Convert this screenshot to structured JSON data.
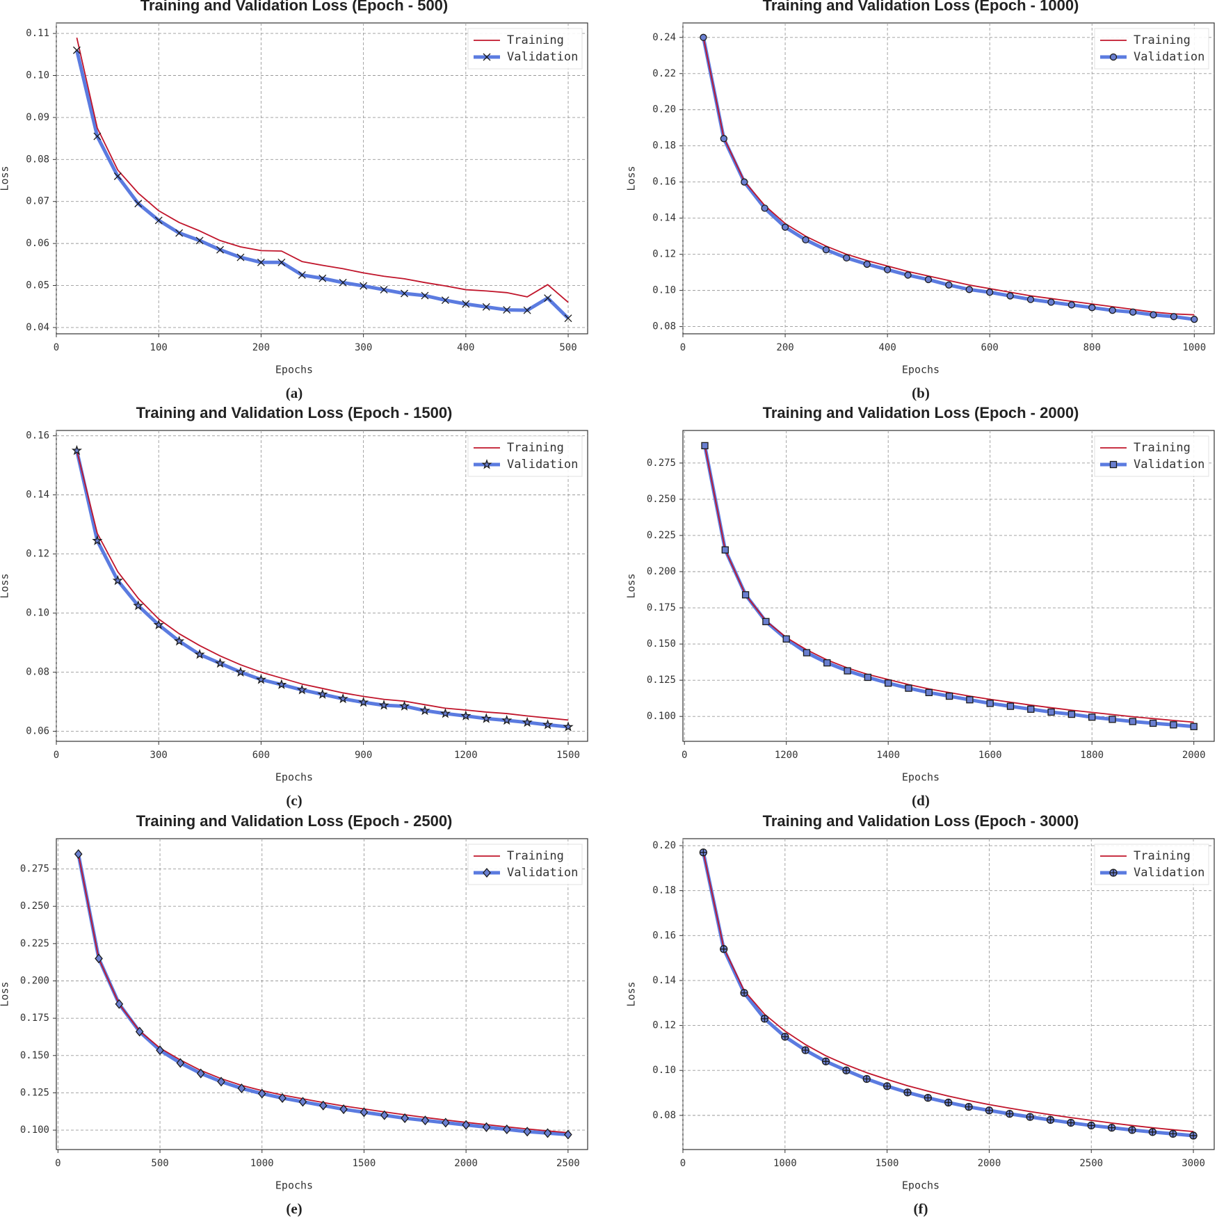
{
  "chart_data": [
    {
      "type": "line",
      "title": "Training and Validation Loss (Epoch - 500)",
      "xlabel": "Epochs",
      "ylabel": "Loss",
      "caption": "(a)",
      "x": [
        20,
        40,
        60,
        80,
        100,
        120,
        140,
        160,
        180,
        200,
        220,
        240,
        260,
        280,
        300,
        320,
        340,
        360,
        380,
        400,
        420,
        440,
        460,
        480,
        500
      ],
      "series": [
        {
          "name": "Training",
          "color": "#c0142a",
          "values": [
            0.109,
            0.0875,
            0.0775,
            0.072,
            0.0678,
            0.065,
            0.063,
            0.0607,
            0.0592,
            0.0583,
            0.0582,
            0.0557,
            0.0548,
            0.054,
            0.053,
            0.0522,
            0.0516,
            0.0507,
            0.0499,
            0.049,
            0.0487,
            0.0483,
            0.0473,
            0.0502,
            0.046
          ]
        },
        {
          "name": "Validation",
          "color": "#5b7be0",
          "marker": "x",
          "values": [
            0.106,
            0.0855,
            0.076,
            0.0695,
            0.0655,
            0.0625,
            0.0607,
            0.0585,
            0.0567,
            0.0555,
            0.0555,
            0.0525,
            0.0517,
            0.0507,
            0.0499,
            0.049,
            0.0481,
            0.0476,
            0.0465,
            0.0456,
            0.0449,
            0.0442,
            0.0441,
            0.047,
            0.0422
          ]
        }
      ],
      "xlim": [
        0,
        519
      ],
      "ylim": [
        0.0385,
        0.1125
      ],
      "xticks": [
        0,
        100,
        200,
        300,
        400,
        500
      ],
      "yticks": [
        0.04,
        0.05,
        0.06,
        0.07,
        0.08,
        0.09,
        {
          "value": 0.1,
          "label": "0.10"
        },
        0.11
      ],
      "grid": true,
      "legend": "upper right"
    },
    {
      "type": "line",
      "title": "Training and Validation Loss (Epoch - 1000)",
      "xlabel": "Epochs",
      "ylabel": "Loss",
      "caption": "(b)",
      "x": [
        40,
        80,
        120,
        160,
        200,
        240,
        280,
        320,
        360,
        400,
        440,
        480,
        520,
        560,
        600,
        640,
        680,
        720,
        760,
        800,
        840,
        880,
        920,
        960,
        1000
      ],
      "series": [
        {
          "name": "Training",
          "color": "#c0142a",
          "values": [
            0.24,
            0.1845,
            0.1605,
            0.147,
            0.137,
            0.13,
            0.1245,
            0.12,
            0.1165,
            0.1135,
            0.1105,
            0.108,
            0.1055,
            0.103,
            0.101,
            0.099,
            0.097,
            0.0955,
            0.094,
            0.0925,
            0.091,
            0.0895,
            0.088,
            0.087,
            0.0865
          ]
        },
        {
          "name": "Validation",
          "color": "#5b7be0",
          "marker": "o",
          "values": [
            0.24,
            0.184,
            0.16,
            0.1455,
            0.135,
            0.128,
            0.1225,
            0.118,
            0.1145,
            0.1115,
            0.1085,
            0.106,
            0.103,
            0.1005,
            0.099,
            0.097,
            0.095,
            0.0935,
            0.092,
            0.0905,
            0.089,
            0.088,
            0.0865,
            0.0855,
            0.084
          ]
        }
      ],
      "xlim": [
        0,
        1039
      ],
      "ylim": [
        0.076,
        0.248
      ],
      "xticks": [
        0,
        200,
        400,
        600,
        800,
        1000
      ],
      "yticks": [
        0.08,
        {
          "value": 0.1,
          "label": "0.10"
        },
        0.12,
        0.14,
        0.16,
        0.18,
        {
          "value": 0.2,
          "label": "0.20"
        },
        0.22,
        0.24
      ],
      "grid": true,
      "legend": "upper right"
    },
    {
      "type": "line",
      "title": "Training and Validation Loss (Epoch - 1500)",
      "xlabel": "Epochs",
      "ylabel": "Loss",
      "caption": "(c)",
      "x": [
        60,
        120,
        180,
        240,
        300,
        360,
        420,
        480,
        540,
        600,
        660,
        720,
        780,
        840,
        900,
        960,
        1020,
        1080,
        1140,
        1200,
        1260,
        1320,
        1380,
        1440,
        1500
      ],
      "series": [
        {
          "name": "Training",
          "color": "#c0142a",
          "values": [
            0.155,
            0.127,
            0.114,
            0.105,
            0.098,
            0.093,
            0.089,
            0.0855,
            0.0825,
            0.08,
            0.078,
            0.076,
            0.0745,
            0.073,
            0.0718,
            0.0708,
            0.0702,
            0.069,
            0.0678,
            0.0672,
            0.0665,
            0.066,
            0.0652,
            0.0645,
            0.0638
          ]
        },
        {
          "name": "Validation",
          "color": "#5b7be0",
          "marker": "*",
          "values": [
            0.155,
            0.1245,
            0.111,
            0.1025,
            0.096,
            0.0905,
            0.086,
            0.083,
            0.08,
            0.0775,
            0.0758,
            0.074,
            0.0725,
            0.071,
            0.0698,
            0.0688,
            0.0685,
            0.067,
            0.066,
            0.0652,
            0.0643,
            0.0637,
            0.063,
            0.0622,
            0.0615
          ]
        }
      ],
      "xlim": [
        0,
        1557
      ],
      "ylim": [
        0.0566,
        0.1618
      ],
      "xticks": [
        0,
        300,
        600,
        900,
        1200,
        1500
      ],
      "yticks": [
        0.06,
        0.08,
        {
          "value": 0.1,
          "label": "0.10"
        },
        0.12,
        0.14,
        0.16
      ],
      "grid": true,
      "legend": "upper right"
    },
    {
      "type": "line",
      "title": "Training and Validation Loss (Epoch - 2000)",
      "xlabel": "Epochs",
      "ylabel": "Loss",
      "caption": "(d)",
      "x": [
        1040,
        1080,
        1120,
        1160,
        1200,
        1240,
        1280,
        1320,
        1360,
        1400,
        1440,
        1480,
        1520,
        1560,
        1600,
        1640,
        1680,
        1720,
        1760,
        1800,
        1840,
        1880,
        1920,
        1960,
        2000
      ],
      "series": [
        {
          "name": "Training",
          "color": "#c0142a",
          "values": [
            0.287,
            0.215,
            0.184,
            0.166,
            0.1545,
            0.146,
            0.139,
            0.1335,
            0.129,
            0.1255,
            0.122,
            0.119,
            0.1165,
            0.114,
            0.1118,
            0.1098,
            0.1078,
            0.106,
            0.1043,
            0.1028,
            0.1013,
            0.0998,
            0.0985,
            0.0972,
            0.096
          ]
        },
        {
          "name": "Validation",
          "color": "#5b7be0",
          "marker": "s",
          "values": [
            0.287,
            0.215,
            0.184,
            0.1655,
            0.1535,
            0.144,
            0.137,
            0.1315,
            0.127,
            0.123,
            0.1195,
            0.1165,
            0.114,
            0.1115,
            0.109,
            0.107,
            0.105,
            0.103,
            0.1015,
            0.0995,
            0.098,
            0.0965,
            0.0953,
            0.0942,
            0.093
          ]
        }
      ],
      "xlim": [
        997,
        2040
      ],
      "ylim": [
        0.0828,
        0.2975
      ],
      "xticks": [
        {
          "value": 1000,
          "label": "0"
        },
        1200,
        1400,
        1600,
        1800,
        2000
      ],
      "yticks": [
        {
          "value": 0.1,
          "label": "0.100"
        },
        0.125,
        {
          "value": 0.15,
          "label": "0.150"
        },
        0.175,
        {
          "value": 0.2,
          "label": "0.200"
        },
        0.225,
        {
          "value": 0.25,
          "label": "0.250"
        },
        0.275
      ],
      "grid": true,
      "legend": "upper right"
    },
    {
      "type": "line",
      "title": "Training and Validation Loss (Epoch - 2500)",
      "xlabel": "Epochs",
      "ylabel": "Loss",
      "caption": "(e)",
      "x": [
        100,
        200,
        300,
        400,
        500,
        600,
        700,
        800,
        900,
        1000,
        1100,
        1200,
        1300,
        1400,
        1500,
        1600,
        1700,
        1800,
        1900,
        2000,
        2100,
        2200,
        2300,
        2400,
        2500
      ],
      "series": [
        {
          "name": "Training",
          "color": "#c0142a",
          "values": [
            0.285,
            0.215,
            0.1845,
            0.1665,
            0.155,
            0.147,
            0.14,
            0.1345,
            0.13,
            0.1265,
            0.1235,
            0.121,
            0.1185,
            0.1162,
            0.1142,
            0.1122,
            0.1103,
            0.1085,
            0.1068,
            0.1052,
            0.1037,
            0.1022,
            0.1008,
            0.0995,
            0.0983
          ]
        },
        {
          "name": "Validation",
          "color": "#5b7be0",
          "marker": "D",
          "values": [
            0.285,
            0.215,
            0.1845,
            0.166,
            0.1535,
            0.145,
            0.138,
            0.1325,
            0.128,
            0.1245,
            0.1215,
            0.119,
            0.1165,
            0.114,
            0.112,
            0.11,
            0.108,
            0.1065,
            0.105,
            0.1035,
            0.102,
            0.1005,
            0.099,
            0.098,
            0.097
          ]
        }
      ],
      "xlim": [
        -8,
        2596
      ],
      "ylim": [
        0.087,
        0.2953
      ],
      "xticks": [
        0,
        500,
        1000,
        1500,
        2000,
        2500
      ],
      "yticks": [
        {
          "value": 0.1,
          "label": "0.100"
        },
        0.125,
        {
          "value": 0.15,
          "label": "0.150"
        },
        0.175,
        {
          "value": 0.2,
          "label": "0.200"
        },
        0.225,
        {
          "value": 0.25,
          "label": "0.250"
        },
        0.275
      ],
      "grid": true,
      "legend": "upper right"
    },
    {
      "type": "line",
      "title": "Training and Validation Loss (Epoch - 3000)",
      "xlabel": "Epochs",
      "ylabel": "Loss",
      "caption": "(f)",
      "x": [
        600,
        700,
        800,
        900,
        1000,
        1100,
        1200,
        1300,
        1400,
        1500,
        1600,
        1700,
        1800,
        1900,
        2000,
        2100,
        2200,
        2300,
        2400,
        2500,
        2600,
        2700,
        2800,
        2900,
        3000
      ],
      "series": [
        {
          "name": "Training",
          "color": "#c0142a",
          "values": [
            0.197,
            0.1545,
            0.1355,
            0.125,
            0.1175,
            0.1115,
            0.1065,
            0.1025,
            0.099,
            0.096,
            0.0932,
            0.0908,
            0.0886,
            0.0866,
            0.0848,
            0.0832,
            0.0817,
            0.0803,
            0.079,
            0.0778,
            0.0766,
            0.0755,
            0.0745,
            0.0736,
            0.0728
          ]
        },
        {
          "name": "Validation",
          "color": "#5b7be0",
          "marker": "P",
          "values": [
            0.197,
            0.154,
            0.1345,
            0.123,
            0.115,
            0.109,
            0.104,
            0.1,
            0.0962,
            0.093,
            0.0902,
            0.0878,
            0.0857,
            0.0838,
            0.0822,
            0.0807,
            0.0793,
            0.078,
            0.0767,
            0.0755,
            0.0745,
            0.0735,
            0.0726,
            0.0718,
            0.071
          ]
        }
      ],
      "xlim": [
        500,
        3102
      ],
      "ylim": [
        0.0648,
        0.2031
      ],
      "xticks": [
        {
          "value": 500,
          "label": "0"
        },
        1000,
        1500,
        2000,
        2500,
        3000
      ],
      "yticks": [
        0.08,
        {
          "value": 0.1,
          "label": "0.10"
        },
        0.12,
        0.14,
        0.16,
        0.18,
        {
          "value": 0.2,
          "label": "0.20"
        }
      ],
      "grid": true,
      "legend": "upper right"
    }
  ]
}
